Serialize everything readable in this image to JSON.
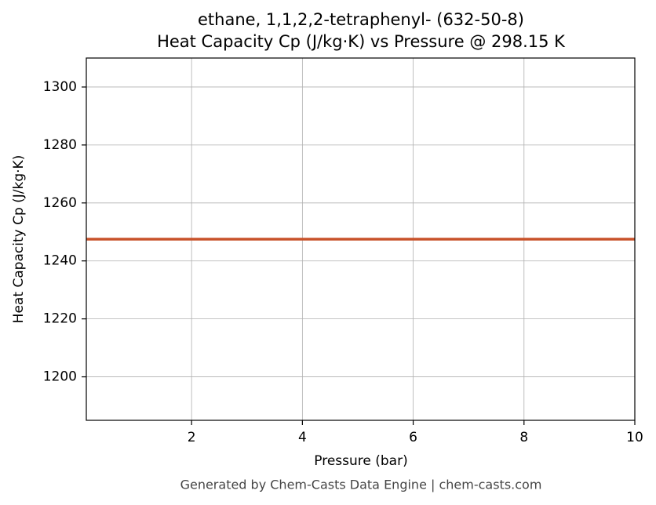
{
  "chart_data": {
    "type": "line",
    "title": "ethane, 1,1,2,2-tetraphenyl- (632-50-8)",
    "subtitle": "Heat Capacity Cp (J/kg·K) vs Pressure @ 298.15 K",
    "x_label": "Pressure (bar)",
    "y_label": "Heat Capacity Cp (J/kg·K)",
    "x": [
      0.1,
      10
    ],
    "series": [
      {
        "name": "Cp",
        "color": "#c8522a",
        "values": [
          1247.5,
          1247.5
        ]
      }
    ],
    "xlim": [
      0.1,
      10
    ],
    "xticks": [
      2,
      4,
      6,
      8,
      10
    ],
    "ylim": [
      1185,
      1310
    ],
    "yticks": [
      1200,
      1220,
      1240,
      1260,
      1280,
      1300
    ],
    "grid": true
  },
  "footer": "Generated by Chem-Casts Data Engine | chem-casts.com"
}
